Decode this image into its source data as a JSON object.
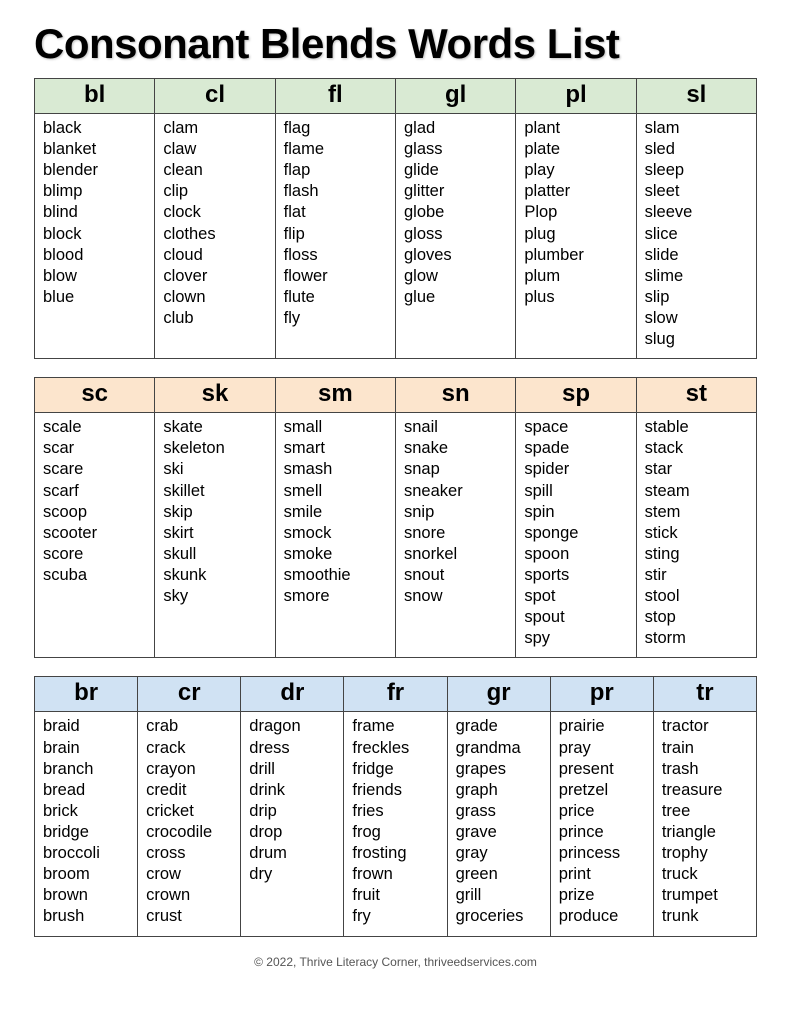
{
  "title": "Consonant Blends Words List",
  "footer": "© 2022, Thrive Literacy Corner, thriveedservices.com",
  "tables": [
    {
      "header_bg": "#d9ead3",
      "columns": [
        {
          "label": "bl",
          "words": [
            "black",
            "blanket",
            "blender",
            "blimp",
            "blind",
            "block",
            "blood",
            "blow",
            "blue"
          ]
        },
        {
          "label": "cl",
          "words": [
            "clam",
            "claw",
            "clean",
            "clip",
            "clock",
            "clothes",
            "cloud",
            "clover",
            "clown",
            "club"
          ]
        },
        {
          "label": "fl",
          "words": [
            "flag",
            "flame",
            "flap",
            "flash",
            "flat",
            "flip",
            "floss",
            "flower",
            "flute",
            "fly"
          ]
        },
        {
          "label": "gl",
          "words": [
            "glad",
            "glass",
            "glide",
            "glitter",
            "globe",
            "gloss",
            "gloves",
            "glow",
            "glue"
          ]
        },
        {
          "label": "pl",
          "words": [
            "plant",
            "plate",
            "play",
            "platter",
            "Plop",
            "plug",
            "plumber",
            "plum",
            "plus"
          ]
        },
        {
          "label": "sl",
          "words": [
            "slam",
            "sled",
            "sleep",
            "sleet",
            "sleeve",
            "slice",
            "slide",
            "slime",
            "slip",
            "slow",
            "slug"
          ]
        }
      ]
    },
    {
      "header_bg": "#fce5cd",
      "columns": [
        {
          "label": "sc",
          "words": [
            "scale",
            "scar",
            "scare",
            "scarf",
            "scoop",
            "scooter",
            "score",
            "scuba"
          ]
        },
        {
          "label": "sk",
          "words": [
            "skate",
            "skeleton",
            "ski",
            "skillet",
            "skip",
            "skirt",
            "skull",
            "skunk",
            "sky"
          ]
        },
        {
          "label": "sm",
          "words": [
            "small",
            "smart",
            "smash",
            "smell",
            "smile",
            "smock",
            "smoke",
            "smoothie",
            "smore"
          ]
        },
        {
          "label": "sn",
          "words": [
            "snail",
            "snake",
            "snap",
            "sneaker",
            "snip",
            "snore",
            "snorkel",
            "snout",
            "snow"
          ]
        },
        {
          "label": "sp",
          "words": [
            "space",
            "spade",
            "spider",
            "spill",
            "spin",
            "sponge",
            "spoon",
            "sports",
            "spot",
            "spout",
            "spy"
          ]
        },
        {
          "label": "st",
          "words": [
            "stable",
            "stack",
            "star",
            "steam",
            "stem",
            "stick",
            "sting",
            "stir",
            "stool",
            "stop",
            "storm"
          ]
        }
      ]
    },
    {
      "header_bg": "#d0e2f3",
      "columns": [
        {
          "label": "br",
          "words": [
            "braid",
            "brain",
            "branch",
            "bread",
            "brick",
            "bridge",
            "broccoli",
            "broom",
            "brown",
            "brush"
          ]
        },
        {
          "label": "cr",
          "words": [
            "crab",
            "crack",
            "crayon",
            "credit",
            "cricket",
            "crocodile",
            "cross",
            "crow",
            "crown",
            "crust"
          ]
        },
        {
          "label": "dr",
          "words": [
            "dragon",
            "dress",
            "drill",
            "drink",
            "drip",
            "drop",
            "drum",
            "dry"
          ]
        },
        {
          "label": "fr",
          "words": [
            "frame",
            "freckles",
            "fridge",
            "friends",
            "fries",
            "frog",
            "frosting",
            "frown",
            "fruit",
            "fry"
          ]
        },
        {
          "label": "gr",
          "words": [
            "grade",
            "grandma",
            "grapes",
            "graph",
            "grass",
            "grave",
            "gray",
            "green",
            "grill",
            "groceries"
          ]
        },
        {
          "label": "pr",
          "words": [
            "prairie",
            "pray",
            "present",
            "pretzel",
            "price",
            "prince",
            "princess",
            "print",
            "prize",
            "produce"
          ]
        },
        {
          "label": "tr",
          "words": [
            "tractor",
            "train",
            "trash",
            "treasure",
            "tree",
            "triangle",
            "trophy",
            "truck",
            "trumpet",
            "trunk"
          ]
        }
      ]
    }
  ]
}
